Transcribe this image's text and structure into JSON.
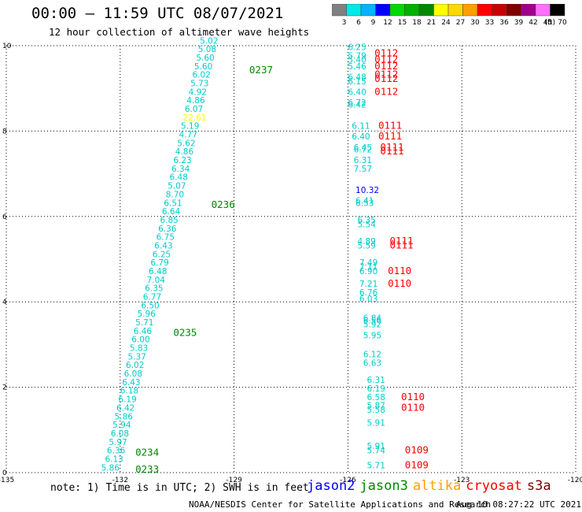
{
  "header": {
    "title": "00:00 – 11:59 UTC 08/07/2021",
    "subtitle": "12 hour collection of altimeter wave heights"
  },
  "colorbar": {
    "colors": [
      "#808080",
      "#00e8e8",
      "#00b4ff",
      "#0000ff",
      "#00d900",
      "#00b000",
      "#008800",
      "#ffff00",
      "#ffd800",
      "#ffa000",
      "#ff0000",
      "#c80000",
      "#800000",
      "#a0008c",
      "#ff70ff",
      "#000000"
    ],
    "labels": [
      "3",
      "6",
      "9",
      "12",
      "15",
      "18",
      "21",
      "24",
      "27",
      "30",
      "33",
      "36",
      "39",
      "42",
      "45",
      "70"
    ],
    "unit": "(ft)"
  },
  "footer": {
    "note": "note: 1) Time is in UTC; 2) SWH is in feet",
    "credit": "NOAA/NESDIS Center for Satellite Applications and Research",
    "timestamp": "Aug 10 08:27:22 UTC 2021"
  },
  "legend": [
    {
      "name": "jason2",
      "color": "#0000ff"
    },
    {
      "name": "jason3",
      "color": "#008800"
    },
    {
      "name": "altika",
      "color": "#ffa000"
    },
    {
      "name": "cryosat",
      "color": "#ff0000"
    },
    {
      "name": "s3a",
      "color": "#800000"
    }
  ],
  "chart_data": {
    "type": "scatter",
    "xlim": [
      -135,
      -120
    ],
    "ylim": [
      0,
      10
    ],
    "xticks": [
      "-135",
      "-132",
      "-129",
      "-126",
      "-123",
      "-120"
    ],
    "yticks": [
      "0",
      "2",
      "4",
      "6",
      "8",
      "10"
    ],
    "grid": true,
    "tracks": [
      {
        "points": [
          {
            "x": -132.5,
            "y": 0.05,
            "v": "5.86"
          },
          {
            "x": -132.4,
            "y": 0.25,
            "v": "6.13"
          },
          {
            "x": -132.35,
            "y": 0.45,
            "v": "6.36"
          },
          {
            "x": -132.3,
            "y": 0.65,
            "v": "5.97"
          },
          {
            "x": -132.25,
            "y": 0.85,
            "v": "6.08"
          },
          {
            "x": -132.2,
            "y": 1.05,
            "v": "5.94"
          },
          {
            "x": -132.15,
            "y": 1.25,
            "v": "5.86"
          },
          {
            "x": -132.1,
            "y": 1.45,
            "v": "6.42"
          },
          {
            "x": -132.05,
            "y": 1.65,
            "v": "6.19"
          },
          {
            "x": -132.0,
            "y": 1.85,
            "v": "6.18"
          },
          {
            "x": -131.95,
            "y": 2.05,
            "v": "6.43"
          },
          {
            "x": -131.9,
            "y": 2.25,
            "v": "6.08"
          },
          {
            "x": -131.85,
            "y": 2.45,
            "v": "6.02"
          },
          {
            "x": -131.8,
            "y": 2.65,
            "v": "5.37"
          },
          {
            "x": -131.75,
            "y": 2.85,
            "v": "5.83"
          },
          {
            "x": -131.7,
            "y": 3.05,
            "v": "6.00"
          },
          {
            "x": -131.65,
            "y": 3.25,
            "v": "6.46"
          },
          {
            "x": -131.6,
            "y": 3.45,
            "v": "5.71"
          },
          {
            "x": -131.55,
            "y": 3.65,
            "v": "5.96"
          },
          {
            "x": -131.45,
            "y": 3.85,
            "v": "6.50"
          },
          {
            "x": -131.4,
            "y": 4.05,
            "v": "6.77"
          },
          {
            "x": -131.35,
            "y": 4.25,
            "v": "6.35"
          },
          {
            "x": -131.3,
            "y": 4.45,
            "v": "7.04"
          },
          {
            "x": -131.25,
            "y": 4.65,
            "v": "6.48"
          },
          {
            "x": -131.2,
            "y": 4.85,
            "v": "6.79"
          },
          {
            "x": -131.15,
            "y": 5.05,
            "v": "6.25"
          },
          {
            "x": -131.1,
            "y": 5.25,
            "v": "6.43"
          },
          {
            "x": -131.05,
            "y": 5.45,
            "v": "6.75"
          },
          {
            "x": -131.0,
            "y": 5.65,
            "v": "6.36"
          },
          {
            "x": -130.95,
            "y": 5.85,
            "v": "6.85"
          },
          {
            "x": -130.9,
            "y": 6.05,
            "v": "6.64"
          },
          {
            "x": -130.85,
            "y": 6.25,
            "v": "6.51"
          },
          {
            "x": -130.8,
            "y": 6.45,
            "v": "8.70"
          },
          {
            "x": -130.75,
            "y": 6.65,
            "v": "5.07"
          },
          {
            "x": -130.7,
            "y": 6.85,
            "v": "6.48"
          },
          {
            "x": -130.65,
            "y": 7.05,
            "v": "6.34"
          },
          {
            "x": -130.6,
            "y": 7.25,
            "v": "6.23"
          },
          {
            "x": -130.55,
            "y": 7.45,
            "v": "4.86"
          },
          {
            "x": -130.5,
            "y": 7.65,
            "v": "5.62"
          },
          {
            "x": -130.45,
            "y": 7.85,
            "v": "4.77"
          },
          {
            "x": -130.4,
            "y": 8.05,
            "v": "5.19"
          },
          {
            "x": -130.35,
            "y": 8.25,
            "v": "22.61",
            "c": "#ffff00"
          },
          {
            "x": -130.3,
            "y": 8.45,
            "v": "6.07"
          },
          {
            "x": -130.25,
            "y": 8.65,
            "v": "4.86"
          },
          {
            "x": -130.2,
            "y": 8.85,
            "v": "4.92"
          },
          {
            "x": -130.15,
            "y": 9.05,
            "v": "5.73"
          },
          {
            "x": -130.1,
            "y": 9.25,
            "v": "6.02"
          },
          {
            "x": -130.05,
            "y": 9.45,
            "v": "5.60"
          },
          {
            "x": -130.0,
            "y": 9.65,
            "v": "5.60"
          },
          {
            "x": -129.95,
            "y": 9.85,
            "v": "5.08"
          },
          {
            "x": -129.9,
            "y": 10.05,
            "v": "5.02"
          }
        ],
        "passes": [
          {
            "label": "0233",
            "x": -131.6,
            "y": 0.0
          },
          {
            "label": "0234",
            "x": -131.6,
            "y": 0.4
          },
          {
            "label": "0235",
            "x": -130.6,
            "y": 3.2
          },
          {
            "label": "0236",
            "x": -129.6,
            "y": 6.2
          },
          {
            "label": "0237",
            "x": -128.6,
            "y": 9.35
          }
        ],
        "pass_color": "#008800"
      },
      {
        "points": [
          {
            "x": -125.5,
            "y": 0.1,
            "v": "5.71"
          },
          {
            "x": -125.5,
            "y": 0.45,
            "v": "5.74"
          },
          {
            "x": -125.5,
            "y": 0.55,
            "v": "5.91"
          },
          {
            "x": -125.5,
            "y": 1.1,
            "v": "5.91"
          },
          {
            "x": -125.5,
            "y": 1.4,
            "v": "5.58"
          },
          {
            "x": -125.5,
            "y": 1.5,
            "v": "5.87"
          },
          {
            "x": -125.5,
            "y": 1.7,
            "v": "6.58"
          },
          {
            "x": -125.5,
            "y": 1.9,
            "v": "6.19"
          },
          {
            "x": -125.5,
            "y": 2.1,
            "v": "6.31"
          },
          {
            "x": -125.6,
            "y": 2.5,
            "v": "6.63"
          },
          {
            "x": -125.6,
            "y": 2.7,
            "v": "6.12"
          },
          {
            "x": -125.6,
            "y": 3.15,
            "v": "5.95"
          },
          {
            "x": -125.6,
            "y": 3.4,
            "v": "5.92"
          },
          {
            "x": -125.6,
            "y": 3.5,
            "v": "6.56"
          },
          {
            "x": -125.6,
            "y": 3.55,
            "v": "6.84"
          },
          {
            "x": -125.7,
            "y": 4.0,
            "v": "6.03"
          },
          {
            "x": -125.7,
            "y": 4.15,
            "v": "6.76"
          },
          {
            "x": -125.7,
            "y": 4.35,
            "v": "7.21"
          },
          {
            "x": -125.7,
            "y": 4.65,
            "v": "6.90"
          },
          {
            "x": -125.7,
            "y": 4.75,
            "v": "7.11"
          },
          {
            "x": -125.7,
            "y": 4.85,
            "v": "7.49"
          },
          {
            "x": -125.75,
            "y": 5.25,
            "v": "5.59"
          },
          {
            "x": -125.75,
            "y": 5.35,
            "v": "4.89"
          },
          {
            "x": -125.75,
            "y": 5.75,
            "v": "5.54"
          },
          {
            "x": -125.75,
            "y": 5.85,
            "v": "6.35"
          },
          {
            "x": -125.8,
            "y": 6.25,
            "v": "6.53"
          },
          {
            "x": -125.8,
            "y": 6.3,
            "v": "6.41"
          },
          {
            "x": -125.8,
            "y": 6.55,
            "v": "10.32",
            "c": "#0000ff"
          },
          {
            "x": -125.85,
            "y": 7.05,
            "v": "7.57"
          },
          {
            "x": -125.85,
            "y": 7.25,
            "v": "6.31"
          },
          {
            "x": -125.85,
            "y": 7.5,
            "v": "6.72"
          },
          {
            "x": -125.85,
            "y": 7.55,
            "v": "6.45"
          },
          {
            "x": -125.9,
            "y": 7.8,
            "v": "6.40"
          },
          {
            "x": -125.9,
            "y": 8.05,
            "v": "6.11"
          },
          {
            "x": -126.0,
            "y": 8.55,
            "v": "6.42"
          },
          {
            "x": -126.0,
            "y": 8.6,
            "v": "6.72"
          },
          {
            "x": -126.0,
            "y": 8.85,
            "v": "6.40"
          },
          {
            "x": -126.0,
            "y": 9.1,
            "v": "6.15"
          },
          {
            "x": -126.0,
            "y": 9.2,
            "v": "6.48"
          },
          {
            "x": -126.0,
            "y": 9.45,
            "v": "5.46"
          },
          {
            "x": -126.0,
            "y": 9.6,
            "v": "5.40"
          },
          {
            "x": -126.0,
            "y": 9.7,
            "v": "5.79"
          },
          {
            "x": -126.0,
            "y": 9.9,
            "v": "6.25"
          }
        ],
        "passes": [
          {
            "label": "0109",
            "x": -124.5,
            "y": 0.1
          },
          {
            "label": "0109",
            "x": -124.5,
            "y": 0.45
          },
          {
            "label": "0110",
            "x": -124.6,
            "y": 1.45
          },
          {
            "label": "0110",
            "x": -124.6,
            "y": 1.7
          },
          {
            "label": "0110",
            "x": -124.95,
            "y": 4.35
          },
          {
            "label": "0110",
            "x": -124.95,
            "y": 4.65
          },
          {
            "label": "0111",
            "x": -124.9,
            "y": 5.25
          },
          {
            "label": "0111",
            "x": -124.9,
            "y": 5.35
          },
          {
            "label": "0111",
            "x": -125.15,
            "y": 7.45
          },
          {
            "label": "0111",
            "x": -125.15,
            "y": 7.55
          },
          {
            "label": "0111",
            "x": -125.2,
            "y": 7.8
          },
          {
            "label": "0111",
            "x": -125.2,
            "y": 8.05
          },
          {
            "label": "0112",
            "x": -125.3,
            "y": 8.85
          },
          {
            "label": "0112",
            "x": -125.3,
            "y": 9.15
          },
          {
            "label": "0112",
            "x": -125.3,
            "y": 9.25
          },
          {
            "label": "0112",
            "x": -125.3,
            "y": 9.45
          },
          {
            "label": "0112",
            "x": -125.3,
            "y": 9.6
          },
          {
            "label": "0112",
            "x": -125.3,
            "y": 9.75
          }
        ],
        "pass_color": "#ff0000"
      }
    ],
    "point_color": "#00cccc"
  }
}
